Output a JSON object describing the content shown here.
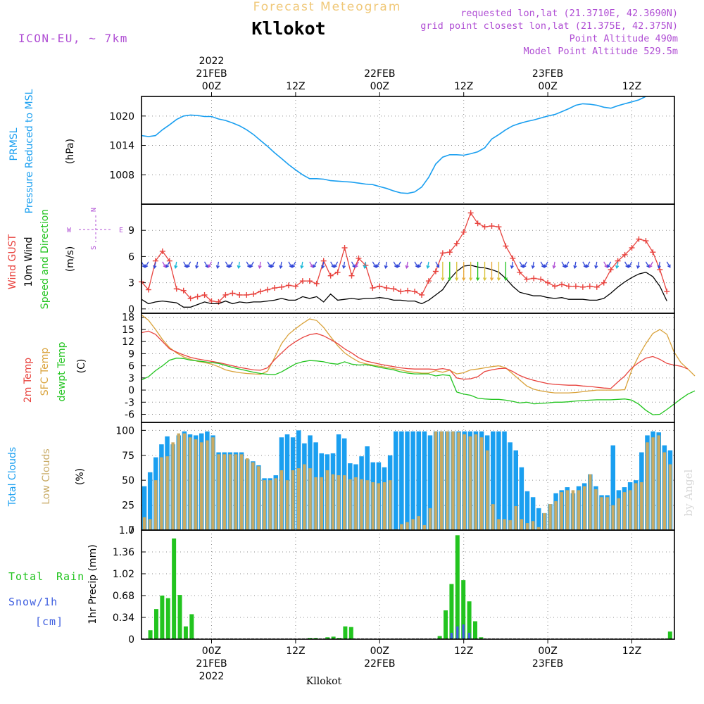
{
  "header": {
    "subtitle": "Forecast Meteogram",
    "title": "Kllokot",
    "model": "ICON-EU, ~ 7km",
    "requested": "requested lon,lat (21.3710E, 42.3690N)",
    "grid_point": "grid point closest lon,lat (21.375E, 42.375N)",
    "point_altitude": "Point Altitude 490m",
    "model_altitude": "Model Point Altitude 529.5m",
    "footer_label": "Kllokot",
    "watermark": "by Angel"
  },
  "colors": {
    "pressure": "#1a9ff0",
    "gust": "#e8433e",
    "wind": "#000000",
    "t2m": "#e8433e",
    "sfc": "#d9a23a",
    "dewpt": "#22c41f",
    "total_clouds": "#1a9ff0",
    "low_clouds": "#c8aa64",
    "rain": "#22c41f",
    "snow": "#3f5fe0",
    "purple": "#b04fd4",
    "subtitle": "#f0c878"
  },
  "time_axis": {
    "n_steps": 64,
    "top_labels": [
      {
        "step": 10,
        "lines": [
          "2022",
          "21FEB",
          "00Z"
        ]
      },
      {
        "step": 22,
        "lines": [
          "12Z"
        ]
      },
      {
        "step": 34,
        "lines": [
          "22FEB",
          "00Z"
        ]
      },
      {
        "step": 46,
        "lines": [
          "12Z"
        ]
      },
      {
        "step": 58,
        "lines": [
          "23FEB",
          "00Z"
        ]
      },
      {
        "step": 70,
        "lines": [
          "12Z"
        ]
      }
    ],
    "bottom_labels": [
      {
        "step": 10,
        "lines": [
          "00Z",
          "21FEB",
          "2022"
        ]
      },
      {
        "step": 22,
        "lines": [
          "12Z"
        ]
      },
      {
        "step": 34,
        "lines": [
          "00Z",
          "22FEB"
        ]
      },
      {
        "step": 46,
        "lines": [
          "12Z"
        ]
      },
      {
        "step": 58,
        "lines": [
          "00Z",
          "23FEB"
        ]
      },
      {
        "step": 70,
        "lines": [
          "12Z"
        ]
      }
    ]
  },
  "panels": {
    "pressure": {
      "labels": [
        "PRMSL",
        "Pressure Reduced to MSL"
      ],
      "unit": "(hPa)"
    },
    "wind": {
      "labels": [
        "Wind GUST",
        "10m Wind",
        "Speed and Direction"
      ],
      "unit": "(m/s)",
      "compass": {
        "n": "N",
        "s": "S",
        "w": "W",
        "e": "E"
      }
    },
    "temp": {
      "labels": [
        "2m Temp",
        "SFC Temp",
        "dewpt Temp"
      ],
      "unit": "(C)"
    },
    "clouds": {
      "labels": [
        "Total Clouds",
        "Low Clouds"
      ],
      "unit": "(%)"
    },
    "precip": {
      "labels": [
        "Total",
        "Rain",
        "Snow/1h",
        "[cm]"
      ],
      "unit": "1hr Precip (mm)"
    }
  },
  "chart_data": [
    {
      "type": "line",
      "title": "PRMSL Pressure Reduced to MSL",
      "ylabel": "hPa",
      "ylim": [
        1002,
        1024
      ],
      "yticks": [
        1008,
        1014,
        1020
      ],
      "grid": true,
      "series": [
        {
          "name": "PRMSL",
          "values": [
            1016.0,
            1015.8,
            1016.0,
            1017.2,
            1018.2,
            1019.3,
            1020.0,
            1020.2,
            1020.1,
            1019.9,
            1019.9,
            1019.4,
            1019.1,
            1018.6,
            1018.0,
            1017.2,
            1016.2,
            1015.0,
            1013.8,
            1012.5,
            1011.3,
            1010.1,
            1009.0,
            1008.0,
            1007.2,
            1007.2,
            1007.1,
            1006.8,
            1006.7,
            1006.6,
            1006.5,
            1006.3,
            1006.1,
            1006.0,
            1005.6,
            1005.2,
            1004.7,
            1004.3,
            1004.2,
            1004.5,
            1005.5,
            1007.5,
            1010.2,
            1011.6,
            1012.1,
            1012.1,
            1012.0,
            1012.3,
            1012.7,
            1013.5,
            1015.3,
            1016.2,
            1017.2,
            1018.0,
            1018.5,
            1018.9,
            1019.2,
            1019.6,
            1020.0,
            1020.3,
            1020.9,
            1021.5,
            1022.2,
            1022.5,
            1022.4,
            1022.2,
            1021.8,
            1021.6,
            1022.1,
            1022.5,
            1022.9,
            1023.3,
            1024.0
          ]
        }
      ]
    },
    {
      "type": "line",
      "title": "Wind GUST / 10m Wind Speed and Direction",
      "ylabel": "m/s",
      "ylim": [
        -0.5,
        12
      ],
      "yticks": [
        0,
        3,
        6,
        9
      ],
      "grid": true,
      "series": [
        {
          "name": "Wind GUST",
          "values": [
            3.1,
            2.2,
            5.5,
            6.6,
            5.5,
            2.3,
            2.1,
            1.2,
            1.4,
            1.6,
            0.9,
            0.8,
            1.6,
            1.8,
            1.6,
            1.6,
            1.7,
            2.0,
            2.2,
            2.4,
            2.5,
            2.7,
            2.6,
            3.2,
            3.2,
            2.9,
            5.5,
            3.8,
            4.2,
            7.0,
            3.8,
            5.8,
            5.0,
            2.4,
            2.6,
            2.4,
            2.3,
            2.0,
            2.1,
            2.0,
            1.6,
            3.2,
            4.3,
            6.4,
            6.5,
            7.5,
            8.8,
            11.0,
            9.8,
            9.4,
            9.5,
            9.4,
            7.2,
            5.8,
            4.2,
            3.4,
            3.5,
            3.4,
            3.0,
            2.6,
            2.8,
            2.6,
            2.6,
            2.5,
            2.6,
            2.5,
            3.0,
            4.5,
            5.5,
            6.2,
            7.0,
            8.0,
            7.8,
            6.5,
            4.5,
            2.0
          ]
        },
        {
          "name": "10m Wind",
          "values": [
            1.1,
            0.6,
            0.8,
            0.9,
            0.8,
            0.7,
            0.2,
            0.2,
            0.5,
            0.8,
            0.6,
            0.6,
            0.9,
            0.6,
            0.8,
            0.7,
            0.8,
            0.8,
            0.9,
            1.0,
            1.2,
            1.0,
            1.0,
            1.4,
            1.2,
            1.4,
            0.8,
            1.7,
            1.0,
            1.1,
            1.2,
            1.1,
            1.2,
            1.2,
            1.3,
            1.2,
            1.0,
            1.0,
            0.9,
            0.9,
            0.6,
            1.0,
            1.6,
            2.2,
            3.4,
            4.3,
            4.9,
            5.0,
            4.8,
            4.7,
            4.5,
            4.2,
            3.5,
            2.6,
            1.9,
            1.7,
            1.5,
            1.5,
            1.3,
            1.2,
            1.3,
            1.1,
            1.1,
            1.1,
            1.0,
            1.0,
            1.2,
            1.8,
            2.5,
            3.1,
            3.6,
            4.0,
            4.2,
            3.7,
            2.6,
            0.9
          ]
        }
      ]
    },
    {
      "type": "line",
      "title": "2m Temp / SFC Temp / dewpt Temp",
      "ylabel": "C",
      "ylim": [
        -8,
        19
      ],
      "yticks": [
        -6,
        -3,
        0,
        3,
        6,
        9,
        12,
        15,
        18
      ],
      "grid": true,
      "series": [
        {
          "name": "2m Temp",
          "values": [
            14.2,
            14.6,
            13.8,
            12.0,
            10.2,
            9.4,
            8.7,
            8.1,
            7.7,
            7.4,
            7.1,
            6.8,
            6.4,
            6.0,
            5.6,
            5.3,
            5.0,
            4.9,
            5.5,
            7.5,
            9.2,
            10.8,
            12.0,
            13.0,
            13.7,
            14.0,
            13.4,
            12.5,
            11.5,
            10.2,
            9.2,
            8.0,
            7.2,
            6.8,
            6.4,
            6.1,
            5.8,
            5.5,
            5.3,
            5.2,
            5.2,
            5.2,
            5.1,
            5.3,
            5.0,
            3.0,
            2.7,
            2.8,
            3.3,
            4.6,
            5.0,
            5.3,
            5.4,
            4.6,
            3.6,
            2.9,
            2.4,
            2.0,
            1.6,
            1.4,
            1.3,
            1.2,
            1.2,
            1.0,
            0.9,
            0.7,
            0.5,
            0.4,
            2.0,
            3.5,
            5.5,
            6.8,
            7.9,
            8.3,
            7.6,
            6.6,
            6.2,
            5.9,
            5.2
          ]
        },
        {
          "name": "SFC Temp",
          "values": [
            18.6,
            17.3,
            15.0,
            12.5,
            10.5,
            9.2,
            8.2,
            7.6,
            7.1,
            6.8,
            6.4,
            5.8,
            5.0,
            4.6,
            4.3,
            4.1,
            4.0,
            3.9,
            4.7,
            8.0,
            11.5,
            13.8,
            15.2,
            16.5,
            17.6,
            17.2,
            15.5,
            13.2,
            11.0,
            9.2,
            8.0,
            7.0,
            6.5,
            6.2,
            5.9,
            5.6,
            5.3,
            5.0,
            4.6,
            4.4,
            4.2,
            4.2,
            4.8,
            4.4,
            4.9,
            4.0,
            4.3,
            5.0,
            5.2,
            5.5,
            5.8,
            6.0,
            5.5,
            4.0,
            2.5,
            1.0,
            0.2,
            -0.2,
            -0.5,
            -0.7,
            -0.7,
            -0.7,
            -0.6,
            -0.4,
            -0.2,
            0.0,
            0.0,
            0.0,
            0.0,
            0.1,
            5.0,
            8.5,
            11.5,
            14.0,
            15.0,
            13.8,
            9.5,
            6.8,
            5.2,
            3.5
          ]
        },
        {
          "name": "dewpt Temp",
          "values": [
            2.5,
            3.3,
            4.8,
            6.0,
            7.4,
            7.9,
            7.8,
            7.4,
            7.2,
            7.0,
            6.8,
            6.6,
            6.1,
            5.6,
            5.2,
            4.8,
            4.4,
            4.1,
            3.9,
            3.8,
            4.5,
            5.5,
            6.5,
            7.0,
            7.3,
            7.2,
            7.0,
            6.6,
            6.4,
            7.0,
            6.4,
            6.2,
            6.3,
            6.0,
            5.6,
            5.3,
            5.0,
            4.5,
            4.2,
            4.0,
            4.0,
            4.0,
            3.5,
            3.8,
            3.6,
            -0.5,
            -1.0,
            -1.3,
            -2.0,
            -2.2,
            -2.3,
            -2.3,
            -2.5,
            -2.8,
            -3.2,
            -3.0,
            -3.4,
            -3.3,
            -3.2,
            -3.0,
            -3.0,
            -2.9,
            -2.7,
            -2.6,
            -2.5,
            -2.4,
            -2.4,
            -2.4,
            -2.3,
            -2.2,
            -2.5,
            -3.5,
            -5.0,
            -6.1,
            -6.0,
            -4.8,
            -3.5,
            -2.2,
            -1.0,
            -0.2
          ]
        }
      ]
    },
    {
      "type": "bar",
      "title": "Total Clouds / Low Clouds",
      "ylabel": "%",
      "ylim": [
        0,
        108
      ],
      "yticks": [
        0,
        25,
        50,
        75,
        100
      ],
      "grid": true,
      "series": [
        {
          "name": "Total Clouds",
          "values": [
            44,
            58,
            73,
            86,
            94,
            86,
            95,
            99,
            96,
            95,
            97,
            99,
            95,
            78,
            78,
            78,
            78,
            78,
            71,
            69,
            65,
            52,
            52,
            55,
            93,
            96,
            93,
            100,
            87,
            95,
            88,
            77,
            76,
            77,
            96,
            92,
            67,
            66,
            74,
            84,
            68,
            68,
            63,
            75,
            99,
            99,
            99,
            99,
            99,
            99,
            95,
            99,
            99,
            99,
            99,
            99,
            99,
            99,
            99,
            99,
            95,
            99,
            99,
            99,
            88,
            80,
            63,
            39,
            33,
            22,
            17,
            26,
            37,
            40,
            43,
            37,
            44,
            47,
            56,
            44,
            35,
            35,
            85,
            40,
            43,
            48,
            50,
            78,
            95,
            99,
            98,
            85,
            80
          ]
        },
        {
          "name": "Low Clouds",
          "values": [
            13,
            11,
            50,
            73,
            74,
            88,
            97,
            97,
            93,
            91,
            88,
            90,
            93,
            76,
            76,
            76,
            76,
            76,
            72,
            68,
            64,
            50,
            50,
            52,
            60,
            50,
            60,
            62,
            66,
            62,
            53,
            53,
            60,
            56,
            55,
            55,
            51,
            53,
            51,
            50,
            48,
            47,
            48,
            50,
            1,
            6,
            8,
            11,
            14,
            5,
            22,
            99,
            99,
            99,
            99,
            98,
            96,
            94,
            96,
            93,
            80,
            26,
            11,
            11,
            10,
            24,
            11,
            7,
            9,
            3,
            17,
            26,
            29,
            38,
            40,
            40,
            40,
            44,
            56,
            41,
            33,
            33,
            25,
            32,
            38,
            40,
            47,
            48,
            88,
            93,
            95,
            78,
            66
          ]
        }
      ]
    },
    {
      "type": "bar",
      "title": "Total Rain / Snow 1hr Precip",
      "ylabel": "mm",
      "ylim": [
        0,
        1.7
      ],
      "yticks": [
        0,
        0.34,
        0.68,
        1.02,
        1.36,
        1.7
      ],
      "grid": true,
      "series": [
        {
          "name": "Total Rain",
          "values": [
            0,
            0.14,
            0.47,
            0.68,
            0.64,
            1.57,
            0.69,
            0.2,
            0.39,
            0.01,
            0,
            0,
            0,
            0,
            0,
            0,
            0,
            0,
            0,
            0,
            0,
            0,
            0,
            0,
            0,
            0,
            0,
            0,
            0.02,
            0.02,
            0,
            0.03,
            0.04,
            0.02,
            0.2,
            0.19,
            0,
            0,
            0,
            0,
            0,
            0,
            0,
            0,
            0,
            0,
            0,
            0,
            0,
            0,
            0.05,
            0.45,
            0.86,
            1.62,
            0.92,
            0.59,
            0.28,
            0.03,
            0,
            0,
            0,
            0,
            0,
            0,
            0,
            0,
            0,
            0,
            0,
            0,
            0,
            0,
            0,
            0,
            0,
            0,
            0,
            0,
            0,
            0,
            0,
            0,
            0,
            0,
            0,
            0,
            0,
            0,
            0,
            0.12
          ]
        },
        {
          "name": "Snow/1h",
          "values": [
            0,
            0,
            0,
            0,
            0,
            0,
            0,
            0,
            0,
            0,
            0,
            0,
            0,
            0,
            0,
            0,
            0,
            0,
            0,
            0,
            0,
            0,
            0,
            0,
            0,
            0,
            0,
            0,
            0,
            0,
            0,
            0,
            0,
            0,
            0,
            0,
            0,
            0,
            0,
            0,
            0,
            0,
            0,
            0,
            0,
            0,
            0,
            0,
            0,
            0,
            0,
            0,
            0.1,
            0.2,
            0.23,
            0.1,
            0,
            0,
            0,
            0,
            0,
            0,
            0,
            0,
            0,
            0,
            0,
            0,
            0,
            0,
            0,
            0,
            0,
            0,
            0,
            0,
            0,
            0,
            0,
            0,
            0,
            0,
            0,
            0,
            0,
            0,
            0,
            0
          ]
        }
      ]
    }
  ]
}
